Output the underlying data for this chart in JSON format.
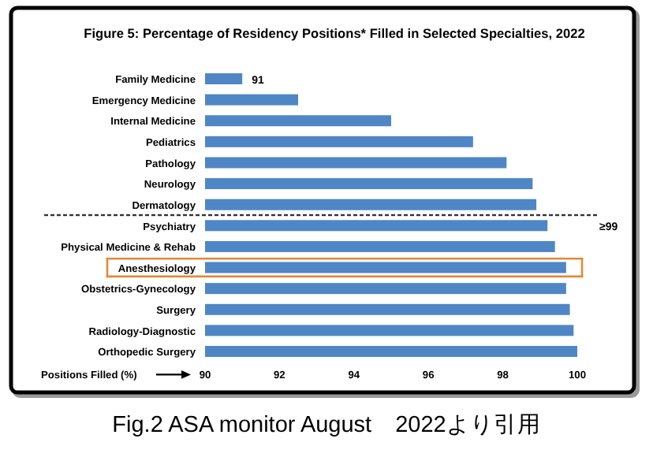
{
  "chart_data": {
    "type": "bar",
    "orientation": "horizontal",
    "title": "Figure 5: Percentage of Residency Positions* Filled in Selected Specialties, 2022",
    "categories": [
      "Family Medicine",
      "Emergency Medicine",
      "Internal Medicine",
      "Pediatrics",
      "Pathology",
      "Neurology",
      "Dermatology",
      "Psychiatry",
      "Physical Medicine & Rehab",
      "Anesthesiology",
      "Obstetrics-Gynecology",
      "Surgery",
      "Radiology-Diagnostic",
      "Orthopedic Surgery"
    ],
    "values": [
      91,
      92.5,
      95.0,
      97.2,
      98.1,
      98.8,
      98.9,
      99.2,
      99.4,
      99.7,
      99.7,
      99.8,
      99.9,
      100
    ],
    "value_labels": [
      "91",
      null,
      null,
      null,
      null,
      null,
      null,
      null,
      null,
      null,
      null,
      null,
      null,
      null
    ],
    "color": "#4f86c6",
    "xlim": [
      90,
      100
    ],
    "xticks": [
      90,
      92,
      94,
      96,
      98,
      100
    ],
    "xlabel": "Positions Filled (%)",
    "annotations": [
      "≥99",
      "Fig.2 ASA monitor August　2022より引用"
    ]
  }
}
